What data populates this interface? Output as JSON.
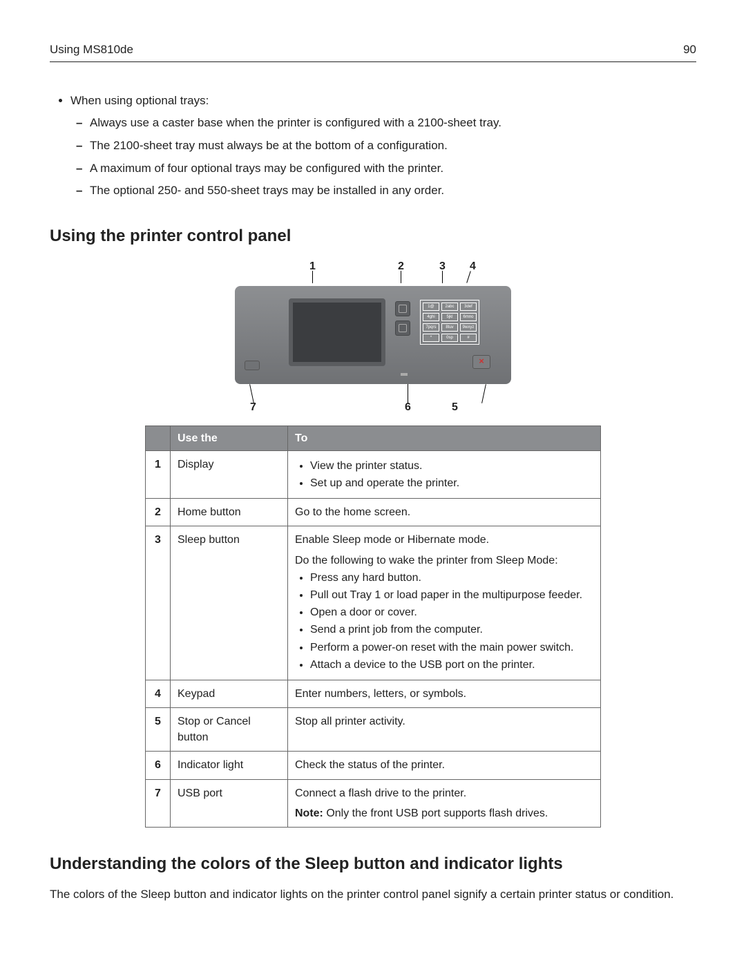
{
  "header": {
    "left": "Using MS810de",
    "page": "90"
  },
  "trays": {
    "lead": "When using optional trays:",
    "items": [
      "Always use a caster base when the printer is configured with a 2100‑sheet tray.",
      "The 2100‑sheet tray must always be at the bottom of a configuration.",
      "A maximum of four optional trays may be configured with the printer.",
      "The optional 250‑ and 550‑sheet trays may be installed in any order."
    ]
  },
  "section1": "Using the printer control panel",
  "diagram": {
    "top_labels": [
      "1",
      "2",
      "3",
      "4"
    ],
    "bot_labels": [
      "7",
      "6",
      "5"
    ],
    "keypad": [
      "1@",
      "2abc",
      "3def",
      "4ghi",
      "5jkl",
      "6mno",
      "7pqrs",
      "8tuv",
      "9wxyz",
      "*",
      "0sp",
      "#"
    ]
  },
  "table": {
    "headers": [
      "",
      "Use the",
      "To"
    ],
    "rows": [
      {
        "n": "1",
        "use": "Display",
        "to_list": [
          "View the printer status.",
          "Set up and operate the printer."
        ]
      },
      {
        "n": "2",
        "use": "Home button",
        "to_text": "Go to the home screen."
      },
      {
        "n": "3",
        "use": "Sleep button",
        "to_intro": "Enable Sleep mode or Hibernate mode.",
        "to_intro2": "Do the following to wake the printer from Sleep Mode:",
        "to_list": [
          "Press any hard button.",
          "Pull out Tray 1 or load paper in the multipurpose feeder.",
          "Open a door or cover.",
          "Send a print job from the computer.",
          "Perform a power‑on reset with the main power switch.",
          "Attach a device to the USB port on the printer."
        ]
      },
      {
        "n": "4",
        "use": "Keypad",
        "to_text": "Enter numbers, letters, or symbols."
      },
      {
        "n": "5",
        "use": "Stop or Cancel button",
        "to_text": "Stop all printer activity."
      },
      {
        "n": "6",
        "use": "Indicator light",
        "to_text": "Check the status of the printer."
      },
      {
        "n": "7",
        "use": "USB port",
        "to_text": "Connect a flash drive to the printer.",
        "to_note_label": "Note:",
        "to_note": " Only the front USB port supports flash drives."
      }
    ]
  },
  "section2": "Understanding the colors of the Sleep button and indicator lights",
  "para": "The colors of the Sleep button and indicator lights on the printer control panel signify a certain printer status or condition."
}
